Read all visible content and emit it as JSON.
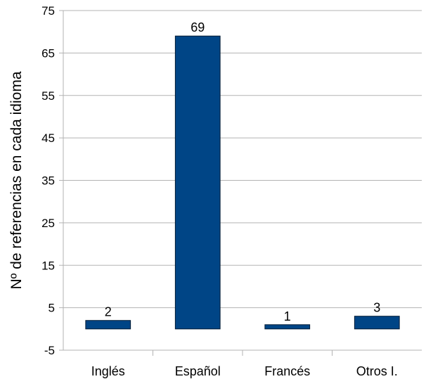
{
  "chart_data": {
    "type": "bar",
    "title": "",
    "xlabel": "",
    "ylabel": "Nº de referencias en cada idioma",
    "categories": [
      "Inglés",
      "Español",
      "Francés",
      "Otros I."
    ],
    "values": [
      2,
      69,
      1,
      3
    ],
    "data_labels": [
      "2",
      "69",
      "1",
      "3"
    ],
    "ylim": [
      -5,
      75
    ],
    "yticks": [
      -5,
      5,
      15,
      25,
      35,
      45,
      55,
      65,
      75
    ],
    "grid": true,
    "legend": "none",
    "bar_color": "#004586",
    "bar_stroke": "#001a33",
    "grid_color": "#b3b3b3"
  }
}
